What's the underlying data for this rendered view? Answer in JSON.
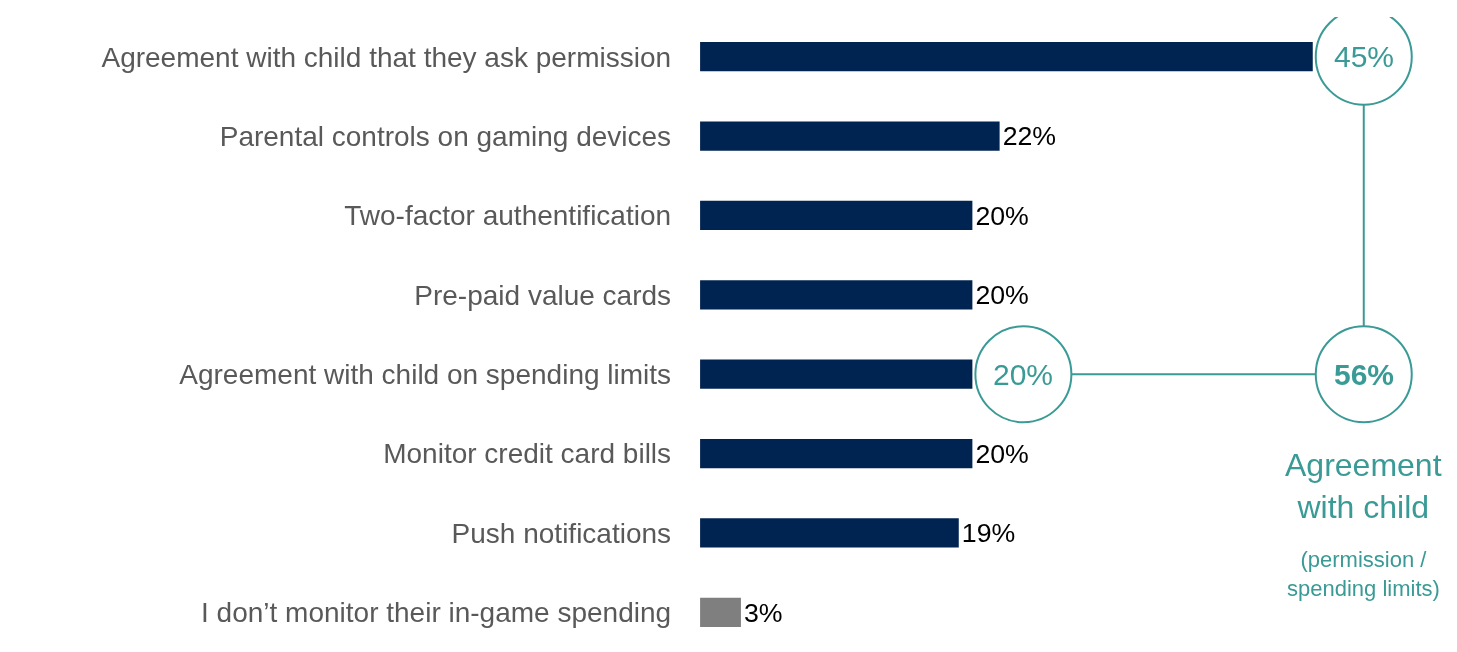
{
  "chart_data": {
    "type": "bar",
    "orientation": "horizontal",
    "categories": [
      "Agreement with child that they ask permission",
      "Parental controls on gaming devices",
      "Two-factor authentification",
      "Pre-paid value cards",
      "Agreement with child on spending limits",
      "Monitor credit card bills",
      "Push notifications",
      "I don’t monitor their in-game spending"
    ],
    "values": [
      45,
      22,
      20,
      20,
      20,
      20,
      19,
      3
    ],
    "colors": [
      "#002451",
      "#002451",
      "#002451",
      "#002451",
      "#002451",
      "#002451",
      "#002451",
      "#7f7f7f"
    ],
    "value_labels": [
      null,
      "22%",
      "20%",
      "20%",
      null,
      "20%",
      "19%",
      "3%"
    ],
    "annotations": [
      "56%",
      "Agreement with child",
      "(permission / spending limits)",
      {
        "text": "45%",
        "x": 45,
        "y": "Agreement with child that they ask permission"
      },
      {
        "text": "20%",
        "x": 20,
        "y": "Agreement with child on spending limits"
      }
    ],
    "tick_labels": "y"
  }
}
